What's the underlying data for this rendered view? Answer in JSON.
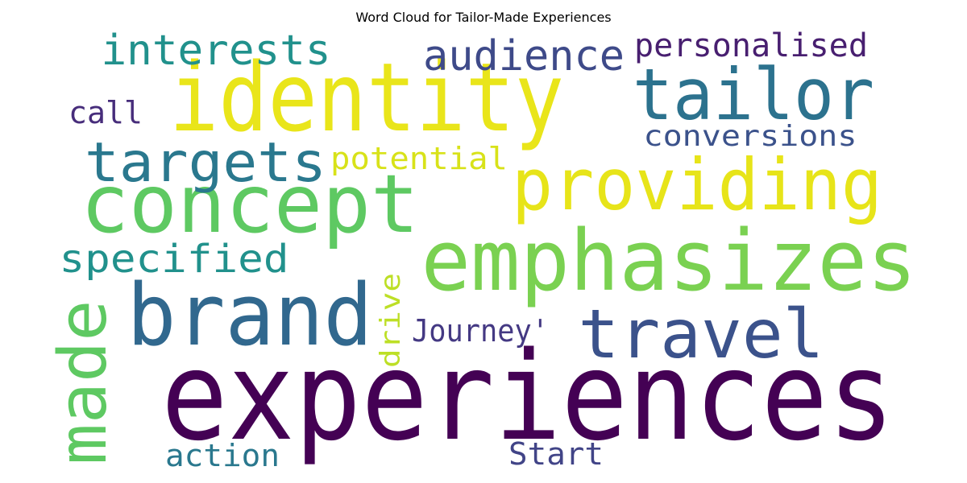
{
  "figure": {
    "title": "Word Cloud for Tailor-Made Experiences"
  },
  "cloud": {
    "words": [
      {
        "text": "experiences",
        "color": "#440154"
      },
      {
        "text": "identity",
        "color": "#e9e51a"
      },
      {
        "text": "concept",
        "color": "#5ec962"
      },
      {
        "text": "brand",
        "color": "#31688e"
      },
      {
        "text": "emphasizes",
        "color": "#7ad151"
      },
      {
        "text": "providing",
        "color": "#e7e419"
      },
      {
        "text": "tailor",
        "color": "#2c728e"
      },
      {
        "text": "travel",
        "color": "#3b528b"
      },
      {
        "text": "made",
        "color": "#5ec962"
      },
      {
        "text": "targets",
        "color": "#2a788e"
      },
      {
        "text": "interests",
        "color": "#21918c"
      },
      {
        "text": "audience",
        "color": "#3e4a89"
      },
      {
        "text": "personalised",
        "color": "#481f70"
      },
      {
        "text": "conversions",
        "color": "#3b528b"
      },
      {
        "text": "specified",
        "color": "#21918c"
      },
      {
        "text": "potential",
        "color": "#d8e219"
      },
      {
        "text": "call",
        "color": "#472d7b"
      },
      {
        "text": "Journey'",
        "color": "#443983"
      },
      {
        "text": "drive",
        "color": "#bddf26"
      },
      {
        "text": "action",
        "color": "#2a788e"
      },
      {
        "text": "Start",
        "color": "#414487"
      }
    ]
  }
}
